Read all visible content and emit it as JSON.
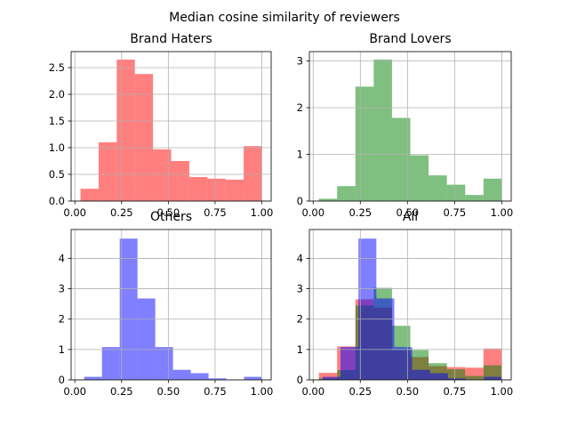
{
  "suptitle": "Median cosine similarity of reviewers",
  "chart_data": [
    {
      "type": "histogram",
      "title": "Brand Haters",
      "color": "#ff0000",
      "opacity": 0.5,
      "bins": [
        0.03,
        0.127,
        0.224,
        0.321,
        0.418,
        0.515,
        0.612,
        0.709,
        0.806,
        0.903,
        1.0
      ],
      "values": [
        0.23,
        1.1,
        2.65,
        2.38,
        0.97,
        0.75,
        0.45,
        0.42,
        0.4,
        1.03
      ],
      "xlim": [
        -0.02,
        1.05
      ],
      "ylim": [
        0,
        2.8
      ],
      "xticks": [
        {
          "value": 0,
          "label": "0.00"
        },
        0.25,
        {
          "value": 0.5,
          "label": "0.50"
        },
        0.75,
        {
          "value": 1,
          "label": "1.00"
        }
      ],
      "yticks": [
        {
          "value": 0,
          "label": "0.0"
        },
        0.5,
        {
          "value": 1,
          "label": "1.0"
        },
        1.5,
        {
          "value": 2,
          "label": "2.0"
        },
        2.5
      ],
      "grid": true
    },
    {
      "type": "histogram",
      "title": "Brand Lovers",
      "color": "#008000",
      "opacity": 0.5,
      "bins": [
        0.03,
        0.127,
        0.224,
        0.321,
        0.418,
        0.515,
        0.612,
        0.709,
        0.806,
        0.903,
        1.0
      ],
      "values": [
        0.05,
        0.32,
        2.45,
        3.03,
        1.78,
        0.98,
        0.55,
        0.35,
        0.13,
        0.48
      ],
      "xlim": [
        -0.02,
        1.05
      ],
      "ylim": [
        0,
        3.2
      ],
      "xticks": [
        {
          "value": 0,
          "label": "0.00"
        },
        0.25,
        {
          "value": 0.5,
          "label": "0.50"
        },
        0.75,
        {
          "value": 1,
          "label": "1.00"
        }
      ],
      "yticks": [
        0,
        1,
        2,
        3
      ],
      "grid": true
    },
    {
      "type": "histogram",
      "title": "Others",
      "color": "#0000ff",
      "opacity": 0.5,
      "bins": [
        0.05,
        0.145,
        0.24,
        0.335,
        0.43,
        0.525,
        0.62,
        0.715,
        0.81,
        0.905,
        1.0
      ],
      "values": [
        0.1,
        1.08,
        4.65,
        2.68,
        1.08,
        0.33,
        0.22,
        0.05,
        0,
        0.1
      ],
      "xlim": [
        -0.02,
        1.05
      ],
      "ylim": [
        0,
        4.95
      ],
      "xticks": [
        {
          "value": 0,
          "label": "0.00"
        },
        0.25,
        {
          "value": 0.5,
          "label": "0.50"
        },
        0.75,
        {
          "value": 1,
          "label": "1.00"
        }
      ],
      "yticks": [
        0,
        1,
        2,
        3,
        4
      ],
      "grid": true
    },
    {
      "type": "histogram",
      "title": "All",
      "opacity": 0.5,
      "series": [
        {
          "color": "#ff0000",
          "bins": [
            0.03,
            0.127,
            0.224,
            0.321,
            0.418,
            0.515,
            0.612,
            0.709,
            0.806,
            0.903,
            1.0
          ],
          "values": [
            0.23,
            1.1,
            2.65,
            2.38,
            0.97,
            0.75,
            0.45,
            0.42,
            0.4,
            1.03
          ]
        },
        {
          "color": "#008000",
          "bins": [
            0.03,
            0.127,
            0.224,
            0.321,
            0.418,
            0.515,
            0.612,
            0.709,
            0.806,
            0.903,
            1.0
          ],
          "values": [
            0.05,
            0.32,
            2.45,
            3.03,
            1.78,
            0.98,
            0.55,
            0.35,
            0.13,
            0.48
          ]
        },
        {
          "color": "#0000ff",
          "bins": [
            0.05,
            0.145,
            0.24,
            0.335,
            0.43,
            0.525,
            0.62,
            0.715,
            0.81,
            0.905,
            1.0
          ],
          "values": [
            0.1,
            1.08,
            4.65,
            2.68,
            1.08,
            0.33,
            0.22,
            0.05,
            0,
            0.1
          ]
        }
      ],
      "xlim": [
        -0.02,
        1.05
      ],
      "ylim": [
        0,
        4.95
      ],
      "xticks": [
        {
          "value": 0,
          "label": "0.00"
        },
        0.25,
        {
          "value": 0.5,
          "label": "0.50"
        },
        0.75,
        {
          "value": 1,
          "label": "1.00"
        }
      ],
      "yticks": [
        0,
        1,
        2,
        3,
        4
      ],
      "grid": true
    }
  ]
}
